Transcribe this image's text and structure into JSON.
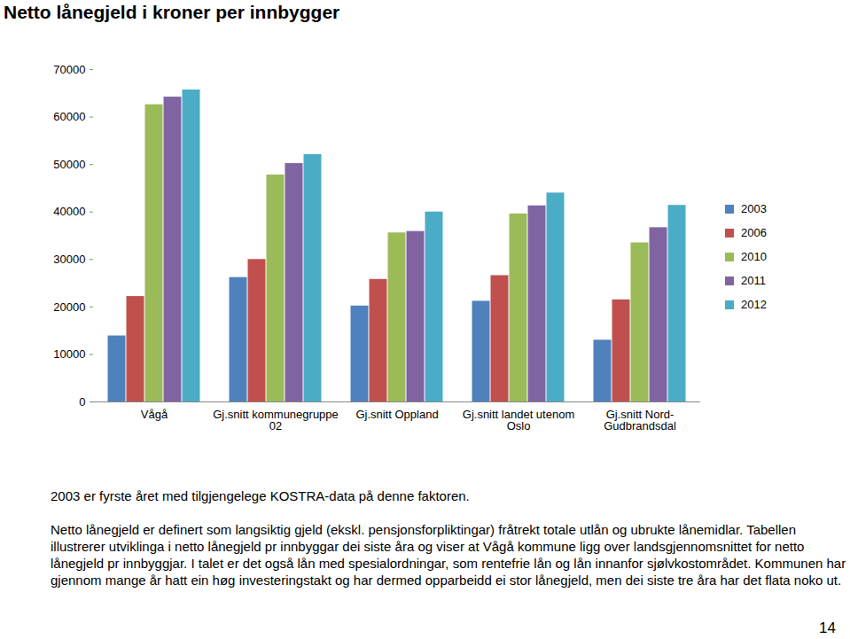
{
  "chart_data": {
    "type": "bar",
    "title": "Netto lånegjeld i kroner per innbygger",
    "categories": [
      "Vågå",
      "Gj.snitt kommunegruppe 02",
      "Gj.snitt Oppland",
      "Gj.snitt landet utenom Oslo",
      "Gj.snitt Nord-Gudbrandsdal"
    ],
    "series": [
      {
        "name": "2003",
        "color": "#4F81BD",
        "values": [
          13900,
          26200,
          20200,
          21200,
          13000
        ]
      },
      {
        "name": "2006",
        "color": "#C0504D",
        "values": [
          22200,
          30000,
          25800,
          26600,
          21500
        ]
      },
      {
        "name": "2010",
        "color": "#9BBB59",
        "values": [
          62600,
          47800,
          35600,
          39600,
          33500
        ]
      },
      {
        "name": "2011",
        "color": "#8064A2",
        "values": [
          64200,
          50200,
          35900,
          41300,
          36700
        ]
      },
      {
        "name": "2012",
        "color": "#4BACC6",
        "values": [
          65700,
          52100,
          40000,
          44000,
          41400
        ]
      }
    ],
    "ylim": [
      0,
      70000
    ],
    "yticks": [
      0,
      10000,
      20000,
      30000,
      40000,
      50000,
      60000,
      70000
    ],
    "grid": false,
    "legend": "right",
    "annotations": [
      "2003 er fyrste året med tilgjengelege KOSTRA-data på denne faktoren.",
      "Netto lånegjeld er definert som langsiktig gjeld (ekskl. pensjonsforpliktingar) fråtrekt totale utlån og ubrukte lånemidlar. Tabellen illustrerer utviklinga i netto lånegjeld pr innbyggar dei siste åra og viser at Vågå kommune ligg over landsgjennomsnittet for netto lånegjeld pr innbyggjar. I talet er det også lån med spesialordningar, som rentefrie lån og lån innanfor sjølvkostområdet. Kommunen har gjennom mange år hatt ein høg investeringstakt og har dermed opparbeidd ei stor lånegjeld, men dei siste tre åra har det flata noko ut."
    ],
    "page_number": 14
  }
}
